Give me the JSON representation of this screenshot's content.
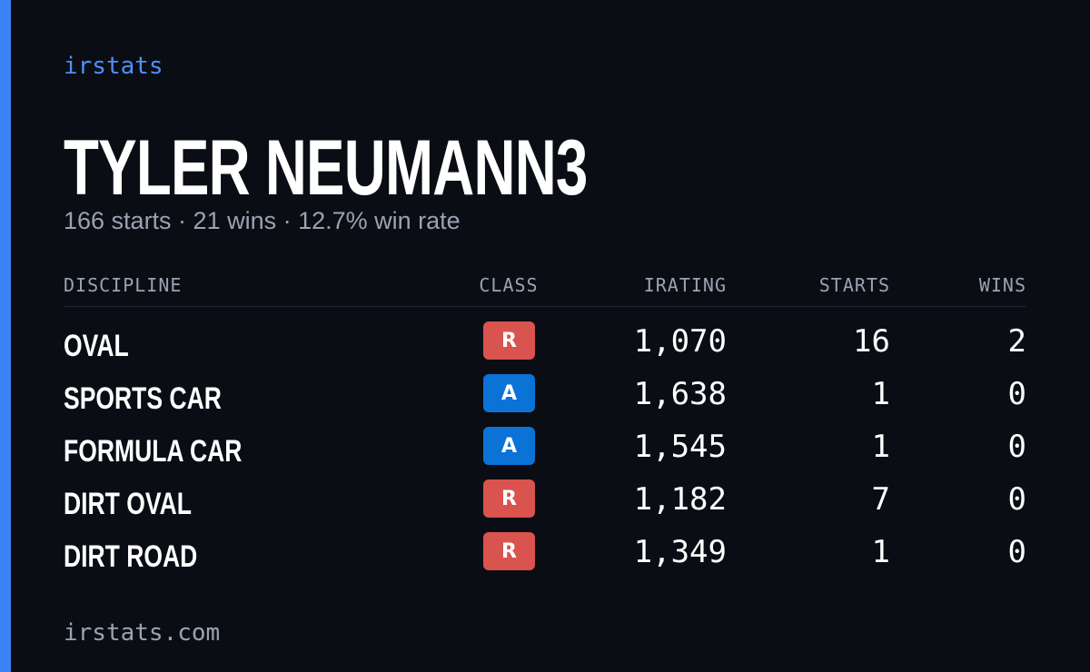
{
  "brand": "irstats",
  "header": {
    "title": "TYLER NEUMANN3",
    "subtitle": "166 starts · 21 wins · 12.7% win rate"
  },
  "table": {
    "columns": [
      "DISCIPLINE",
      "CLASS",
      "IRATING",
      "STARTS",
      "WINS"
    ],
    "rows": [
      [
        "OVAL",
        "R",
        "1,070",
        "16",
        "2"
      ],
      [
        "SPORTS CAR",
        "A",
        "1,638",
        "1",
        "0"
      ],
      [
        "FORMULA CAR",
        "A",
        "1,545",
        "1",
        "0"
      ],
      [
        "DIRT OVAL",
        "R",
        "1,182",
        "7",
        "0"
      ],
      [
        "DIRT ROAD",
        "R",
        "1,349",
        "1",
        "0"
      ]
    ],
    "class_colors": [
      "#d9534f",
      "#0b72d6",
      "#0b72d6",
      "#d9534f",
      "#d9534f"
    ]
  },
  "footer": "irstats.com"
}
